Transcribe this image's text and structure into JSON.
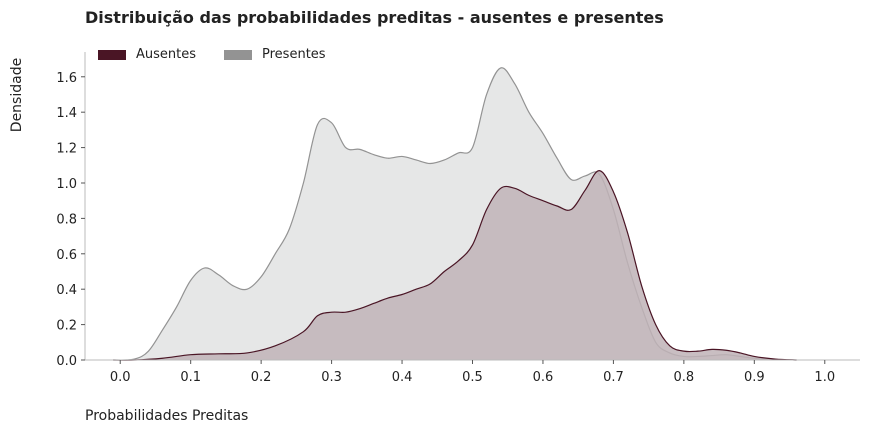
{
  "chart_data": {
    "type": "area",
    "title": "Distribuição das probabilidades preditas - ausentes e presentes",
    "xlabel": "Probabilidades Preditas",
    "ylabel": "Densidade",
    "xlim": [
      -0.05,
      1.05
    ],
    "ylim": [
      0,
      1.74
    ],
    "xticks": [
      "0.0",
      "0.1",
      "0.2",
      "0.3",
      "0.4",
      "0.5",
      "0.6",
      "0.7",
      "0.8",
      "0.9",
      "1.0"
    ],
    "xtick_values": [
      0,
      0.1,
      0.2,
      0.3,
      0.4,
      0.5,
      0.6,
      0.7,
      0.8,
      0.9,
      1.0
    ],
    "yticks": [
      "0.0",
      "0.2",
      "0.4",
      "0.6",
      "0.8",
      "1.0",
      "1.2",
      "1.4",
      "1.6"
    ],
    "ytick_values": [
      0,
      0.2,
      0.4,
      0.6,
      0.8,
      1.0,
      1.2,
      1.4,
      1.6
    ],
    "grid": false,
    "legend_position": "top-left",
    "series": [
      {
        "name": "Presentes",
        "color": "#939393",
        "fill": "#e2e3e3",
        "points": [
          [
            -0.01,
            0
          ],
          [
            0.02,
            0.005
          ],
          [
            0.04,
            0.05
          ],
          [
            0.06,
            0.17
          ],
          [
            0.08,
            0.3
          ],
          [
            0.1,
            0.45
          ],
          [
            0.12,
            0.52
          ],
          [
            0.14,
            0.48
          ],
          [
            0.16,
            0.42
          ],
          [
            0.18,
            0.4
          ],
          [
            0.2,
            0.47
          ],
          [
            0.22,
            0.6
          ],
          [
            0.24,
            0.74
          ],
          [
            0.26,
            1.0
          ],
          [
            0.28,
            1.33
          ],
          [
            0.3,
            1.34
          ],
          [
            0.32,
            1.2
          ],
          [
            0.34,
            1.19
          ],
          [
            0.36,
            1.16
          ],
          [
            0.38,
            1.14
          ],
          [
            0.4,
            1.15
          ],
          [
            0.42,
            1.13
          ],
          [
            0.44,
            1.11
          ],
          [
            0.46,
            1.13
          ],
          [
            0.48,
            1.17
          ],
          [
            0.5,
            1.2
          ],
          [
            0.52,
            1.5
          ],
          [
            0.54,
            1.65
          ],
          [
            0.56,
            1.56
          ],
          [
            0.58,
            1.4
          ],
          [
            0.6,
            1.28
          ],
          [
            0.62,
            1.14
          ],
          [
            0.64,
            1.02
          ],
          [
            0.66,
            1.04
          ],
          [
            0.68,
            1.05
          ],
          [
            0.7,
            0.85
          ],
          [
            0.72,
            0.55
          ],
          [
            0.74,
            0.3
          ],
          [
            0.76,
            0.1
          ],
          [
            0.78,
            0.04
          ],
          [
            0.8,
            0.02
          ],
          [
            0.82,
            0.02
          ],
          [
            0.84,
            0.025
          ],
          [
            0.86,
            0.03
          ],
          [
            0.88,
            0.02
          ],
          [
            0.9,
            0.01
          ],
          [
            0.93,
            0.003
          ],
          [
            0.96,
            0
          ]
        ]
      },
      {
        "name": "Ausentes",
        "color": "#4a1525",
        "fill": "#bfb3b7",
        "points": [
          [
            -0.01,
            0
          ],
          [
            0.02,
            0
          ],
          [
            0.06,
            0.01
          ],
          [
            0.1,
            0.03
          ],
          [
            0.14,
            0.035
          ],
          [
            0.18,
            0.04
          ],
          [
            0.22,
            0.08
          ],
          [
            0.26,
            0.16
          ],
          [
            0.28,
            0.25
          ],
          [
            0.3,
            0.27
          ],
          [
            0.32,
            0.27
          ],
          [
            0.34,
            0.29
          ],
          [
            0.36,
            0.32
          ],
          [
            0.38,
            0.35
          ],
          [
            0.4,
            0.37
          ],
          [
            0.42,
            0.4
          ],
          [
            0.44,
            0.43
          ],
          [
            0.46,
            0.5
          ],
          [
            0.48,
            0.56
          ],
          [
            0.5,
            0.65
          ],
          [
            0.52,
            0.85
          ],
          [
            0.54,
            0.97
          ],
          [
            0.56,
            0.97
          ],
          [
            0.58,
            0.93
          ],
          [
            0.6,
            0.9
          ],
          [
            0.62,
            0.87
          ],
          [
            0.64,
            0.85
          ],
          [
            0.66,
            0.96
          ],
          [
            0.68,
            1.07
          ],
          [
            0.7,
            0.95
          ],
          [
            0.72,
            0.72
          ],
          [
            0.74,
            0.42
          ],
          [
            0.76,
            0.2
          ],
          [
            0.78,
            0.08
          ],
          [
            0.8,
            0.05
          ],
          [
            0.82,
            0.05
          ],
          [
            0.84,
            0.06
          ],
          [
            0.86,
            0.055
          ],
          [
            0.88,
            0.04
          ],
          [
            0.9,
            0.02
          ],
          [
            0.93,
            0.005
          ],
          [
            0.96,
            0
          ]
        ]
      }
    ],
    "legend": [
      {
        "label": "Ausentes",
        "color": "#4a1525"
      },
      {
        "label": "Presentes",
        "color": "#939393"
      }
    ]
  }
}
